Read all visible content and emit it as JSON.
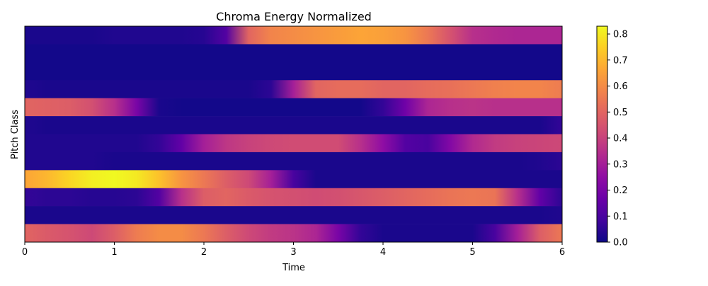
{
  "chart_data": {
    "type": "heatmap",
    "title": "Chroma Energy Normalized",
    "xlabel": "Time",
    "ylabel": "Pitch Class",
    "xlim": [
      0,
      6
    ],
    "x_ticks": [
      0,
      1,
      2,
      3,
      4,
      5,
      6
    ],
    "x_tick_labels": [
      "0",
      "1",
      "2",
      "3",
      "4",
      "5",
      "6"
    ],
    "y_ticks": [],
    "colormap": "plasma",
    "colorbar": {
      "range": [
        0.0,
        0.83
      ],
      "ticks": [
        0.0,
        0.1,
        0.2,
        0.3,
        0.4,
        0.5,
        0.6,
        0.7,
        0.8
      ],
      "tick_labels": [
        "0.0",
        "0.1",
        "0.2",
        "0.3",
        "0.4",
        "0.5",
        "0.6",
        "0.7",
        "0.8"
      ]
    },
    "time": [
      0,
      0.25,
      0.5,
      0.75,
      1,
      1.25,
      1.5,
      1.75,
      2,
      2.25,
      2.5,
      2.75,
      3,
      3.25,
      3.5,
      3.75,
      4,
      4.25,
      4.5,
      4.75,
      5,
      5.25,
      5.5,
      5.75,
      6
    ],
    "rows_top_to_bottom": [
      [
        0.02,
        0.02,
        0.02,
        0.02,
        0.03,
        0.03,
        0.03,
        0.03,
        0.04,
        0.12,
        0.5,
        0.58,
        0.6,
        0.62,
        0.64,
        0.66,
        0.65,
        0.62,
        0.55,
        0.45,
        0.35,
        0.33,
        0.32,
        0.32,
        0.32
      ],
      [
        0.01,
        0.01,
        0.01,
        0.01,
        0.01,
        0.01,
        0.01,
        0.01,
        0.01,
        0.01,
        0.01,
        0.01,
        0.01,
        0.01,
        0.01,
        0.01,
        0.01,
        0.01,
        0.01,
        0.01,
        0.01,
        0.01,
        0.01,
        0.01,
        0.01
      ],
      [
        0.01,
        0.01,
        0.01,
        0.01,
        0.01,
        0.01,
        0.01,
        0.01,
        0.01,
        0.01,
        0.01,
        0.01,
        0.01,
        0.01,
        0.01,
        0.01,
        0.01,
        0.01,
        0.01,
        0.01,
        0.01,
        0.01,
        0.01,
        0.01,
        0.01
      ],
      [
        0.03,
        0.02,
        0.02,
        0.02,
        0.02,
        0.02,
        0.02,
        0.02,
        0.02,
        0.02,
        0.02,
        0.05,
        0.3,
        0.5,
        0.52,
        0.52,
        0.5,
        0.5,
        0.52,
        0.53,
        0.55,
        0.57,
        0.58,
        0.58,
        0.56
      ],
      [
        0.5,
        0.49,
        0.48,
        0.44,
        0.35,
        0.2,
        0.02,
        0.01,
        0.01,
        0.01,
        0.01,
        0.01,
        0.01,
        0.01,
        0.01,
        0.01,
        0.06,
        0.18,
        0.32,
        0.35,
        0.36,
        0.35,
        0.35,
        0.35,
        0.35
      ],
      [
        0.03,
        0.02,
        0.02,
        0.02,
        0.02,
        0.02,
        0.02,
        0.02,
        0.02,
        0.02,
        0.02,
        0.02,
        0.02,
        0.02,
        0.02,
        0.02,
        0.02,
        0.02,
        0.02,
        0.02,
        0.02,
        0.02,
        0.02,
        0.02,
        0.06
      ],
      [
        0.03,
        0.03,
        0.03,
        0.03,
        0.03,
        0.03,
        0.06,
        0.15,
        0.3,
        0.37,
        0.4,
        0.42,
        0.43,
        0.43,
        0.43,
        0.35,
        0.25,
        0.12,
        0.1,
        0.22,
        0.33,
        0.38,
        0.4,
        0.41,
        0.42
      ],
      [
        0.03,
        0.03,
        0.03,
        0.03,
        0.02,
        0.02,
        0.02,
        0.02,
        0.02,
        0.02,
        0.02,
        0.02,
        0.02,
        0.02,
        0.02,
        0.02,
        0.02,
        0.02,
        0.02,
        0.02,
        0.02,
        0.02,
        0.02,
        0.03,
        0.05
      ],
      [
        0.66,
        0.7,
        0.76,
        0.81,
        0.83,
        0.8,
        0.72,
        0.62,
        0.55,
        0.48,
        0.42,
        0.3,
        0.1,
        0.02,
        0.02,
        0.02,
        0.02,
        0.02,
        0.02,
        0.02,
        0.02,
        0.02,
        0.02,
        0.02,
        0.02
      ],
      [
        0.06,
        0.05,
        0.05,
        0.04,
        0.04,
        0.05,
        0.12,
        0.35,
        0.48,
        0.5,
        0.47,
        0.45,
        0.44,
        0.43,
        0.44,
        0.46,
        0.48,
        0.5,
        0.52,
        0.54,
        0.55,
        0.54,
        0.35,
        0.15,
        0.05
      ],
      [
        0.02,
        0.02,
        0.02,
        0.02,
        0.02,
        0.02,
        0.02,
        0.02,
        0.02,
        0.02,
        0.02,
        0.02,
        0.02,
        0.02,
        0.02,
        0.02,
        0.02,
        0.02,
        0.02,
        0.02,
        0.02,
        0.02,
        0.02,
        0.02,
        0.03
      ],
      [
        0.5,
        0.47,
        0.45,
        0.42,
        0.48,
        0.56,
        0.6,
        0.6,
        0.55,
        0.48,
        0.42,
        0.38,
        0.36,
        0.32,
        0.2,
        0.06,
        0.02,
        0.02,
        0.02,
        0.02,
        0.02,
        0.1,
        0.3,
        0.48,
        0.55
      ]
    ]
  }
}
